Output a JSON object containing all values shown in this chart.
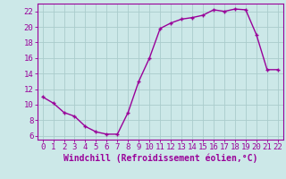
{
  "x": [
    0,
    1,
    2,
    3,
    4,
    5,
    6,
    7,
    8,
    9,
    10,
    11,
    12,
    13,
    14,
    15,
    16,
    17,
    18,
    19,
    20,
    21,
    22
  ],
  "y": [
    11.0,
    10.2,
    9.0,
    8.5,
    7.2,
    6.5,
    6.2,
    6.2,
    9.0,
    13.0,
    16.0,
    19.8,
    20.5,
    21.0,
    21.2,
    21.5,
    22.2,
    22.0,
    22.3,
    22.2,
    19.0,
    14.5,
    14.5
  ],
  "line_color": "#990099",
  "marker": "+",
  "bg_color": "#cce8e8",
  "grid_color": "#aacccc",
  "xlabel": "Windchill (Refroidissement éolien,°C)",
  "xlim": [
    -0.5,
    22.5
  ],
  "ylim": [
    5.5,
    23.0
  ],
  "yticks": [
    6,
    8,
    10,
    12,
    14,
    16,
    18,
    20,
    22
  ],
  "xticks": [
    0,
    1,
    2,
    3,
    4,
    5,
    6,
    7,
    8,
    9,
    10,
    11,
    12,
    13,
    14,
    15,
    16,
    17,
    18,
    19,
    20,
    21,
    22
  ],
  "xlabel_fontsize": 7.0,
  "tick_fontsize": 6.5,
  "line_width": 1.0,
  "marker_size": 3.5
}
